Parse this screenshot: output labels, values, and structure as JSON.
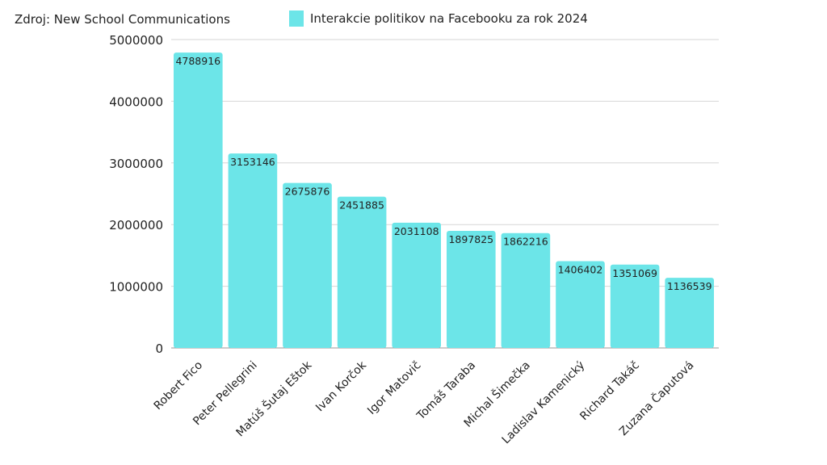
{
  "source": "Zdroj: New School Communications",
  "chart_data": {
    "type": "bar",
    "title": "",
    "xlabel": "",
    "ylabel": "",
    "ylim": [
      0,
      5000000
    ],
    "yticks": [
      0,
      1000000,
      2000000,
      3000000,
      4000000,
      5000000
    ],
    "grid": true,
    "legend_placement": "top",
    "categories": [
      "Robert Fico",
      "Peter Pellegrini",
      "Matúš Šutaj Eštok",
      "Ivan Korčok",
      "Igor Matovič",
      "Tomáš Taraba",
      "Michal Šimečka",
      "Ladislav Kamenický",
      "Richard Takáč",
      "Zuzana Čaputová"
    ],
    "series": [
      {
        "name": "Interakcie politikov na Facebooku za rok 2024",
        "color": "#6ce5e8",
        "values": [
          4788916,
          3153146,
          2675876,
          2451885,
          2031108,
          1897825,
          1862216,
          1406402,
          1351069,
          1136539
        ]
      }
    ]
  }
}
